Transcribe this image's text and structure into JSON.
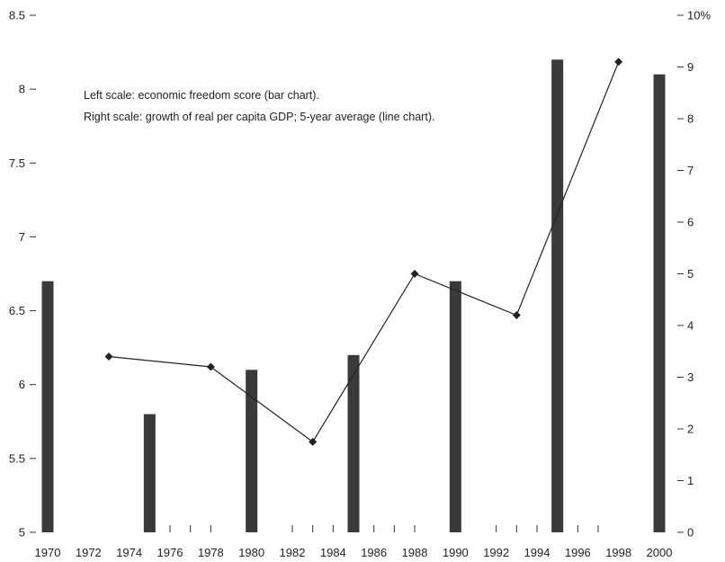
{
  "chart_data": {
    "type": "bar",
    "title": "",
    "annotations": [
      "Left scale: economic freedom score (bar chart).",
      "Right scale: growth of real per capita GDP; 5-year average (line chart)."
    ],
    "x_ticks": [
      "1970",
      "1972",
      "1974",
      "1976",
      "1978",
      "1980",
      "1982",
      "1984",
      "1986",
      "1988",
      "1990",
      "1992",
      "1994",
      "1996",
      "1998",
      "2000"
    ],
    "left_axis": {
      "ylim": [
        5,
        8.5
      ],
      "ticks": [
        "5",
        "5.5",
        "6",
        "6.5",
        "7",
        "7.5",
        "8",
        "8.5"
      ]
    },
    "right_axis": {
      "ylim": [
        0,
        10
      ],
      "ticks": [
        "0",
        "1",
        "2",
        "3",
        "4",
        "5",
        "6",
        "7",
        "8",
        "9",
        "10%"
      ]
    },
    "xlim": [
      1970,
      2000
    ],
    "bar_series": {
      "axis": "left",
      "color": "#3a3a3a",
      "points": [
        {
          "x": 1970,
          "y": 6.7
        },
        {
          "x": 1975,
          "y": 5.8
        },
        {
          "x": 1980,
          "y": 6.1
        },
        {
          "x": 1985,
          "y": 6.2
        },
        {
          "x": 1990,
          "y": 6.7
        },
        {
          "x": 1995,
          "y": 8.2
        },
        {
          "x": 2000,
          "y": 8.1
        }
      ]
    },
    "line_series": {
      "axis": "right",
      "color": "#222222",
      "marker": "diamond",
      "points": [
        {
          "x": 1973,
          "y": 3.4
        },
        {
          "x": 1978,
          "y": 3.2
        },
        {
          "x": 1983,
          "y": 1.75
        },
        {
          "x": 1988,
          "y": 5.0
        },
        {
          "x": 1993,
          "y": 4.2
        },
        {
          "x": 1998,
          "y": 9.1
        }
      ]
    },
    "grid": false,
    "legend": "none"
  }
}
